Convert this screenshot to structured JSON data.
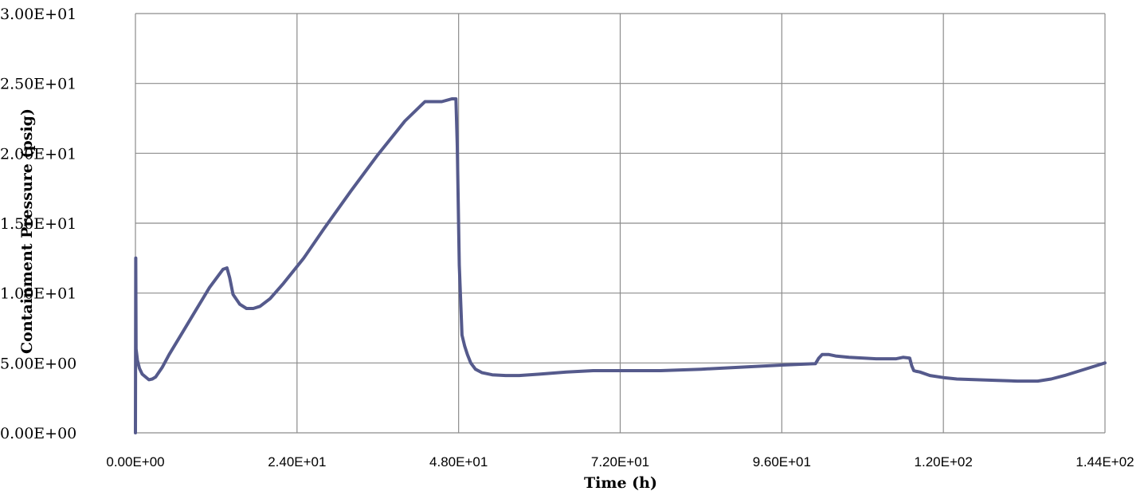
{
  "chart_data": {
    "type": "line",
    "title": "",
    "xlabel": "Time (h)",
    "ylabel": "Containment Pressure (psig)",
    "xlim": [
      0,
      144
    ],
    "ylim": [
      0,
      30
    ],
    "x_ticks": [
      0,
      24,
      48,
      72,
      96,
      120,
      144
    ],
    "x_tick_labels": [
      "0.00E+00",
      "2.40E+01",
      "4.80E+01",
      "7.20E+01",
      "9.60E+01",
      "1.20E+02",
      "1.44E+02"
    ],
    "y_ticks": [
      0,
      5,
      10,
      15,
      20,
      25,
      30
    ],
    "y_tick_labels": [
      "0.00E+00",
      "5.00E+00",
      "1.00E+01",
      "1.50E+01",
      "2.00E+01",
      "2.50E+01",
      "3.00E+01"
    ],
    "grid": true,
    "series_color": "#555A8C",
    "grid_color": "#8C8C8C",
    "series": [
      {
        "x": [
          0,
          0.05,
          0.1,
          0.3,
          0.6,
          1.0,
          1.5,
          2.0,
          2.5,
          3.0,
          4.0,
          5.0,
          7.0,
          9.0,
          11.0,
          13.0,
          13.6,
          14.0,
          14.5,
          15.5,
          16.5,
          17.5,
          18.5,
          20.0,
          22.0,
          25.0,
          28.0,
          32.0,
          36.0,
          40.0,
          43.0,
          44.0,
          45.5,
          47.0,
          47.6,
          47.8,
          48.1,
          48.5,
          48.9,
          49.3,
          49.8,
          50.5,
          51.5,
          53.0,
          55.0,
          57.0,
          60.0,
          64.0,
          68.0,
          72.0,
          78.0,
          84.0,
          90.0,
          96.0,
          101.0,
          101.5,
          102.0,
          103.0,
          104.0,
          106.0,
          110.0,
          113.0,
          114.0,
          115.0,
          115.3,
          115.6,
          116.0,
          116.5,
          118.0,
          120.0,
          122.0,
          125.0,
          128.0,
          131.0,
          134.0,
          136.0,
          138.0,
          140.0,
          142.0,
          144.0
        ],
        "values": [
          0,
          12.5,
          6.0,
          5.2,
          4.6,
          4.2,
          4.0,
          3.8,
          3.85,
          4.0,
          4.7,
          5.6,
          7.2,
          8.8,
          10.4,
          11.7,
          11.8,
          11.1,
          9.9,
          9.2,
          8.9,
          8.9,
          9.05,
          9.6,
          10.7,
          12.5,
          14.6,
          17.3,
          19.9,
          22.3,
          23.7,
          23.7,
          23.7,
          23.9,
          23.9,
          20.5,
          12.0,
          7.0,
          6.2,
          5.6,
          5.0,
          4.55,
          4.3,
          4.15,
          4.1,
          4.1,
          4.2,
          4.35,
          4.45,
          4.45,
          4.45,
          4.55,
          4.7,
          4.85,
          4.95,
          5.35,
          5.6,
          5.6,
          5.5,
          5.4,
          5.3,
          5.3,
          5.4,
          5.35,
          4.8,
          4.45,
          4.4,
          4.35,
          4.1,
          3.95,
          3.85,
          3.8,
          3.75,
          3.7,
          3.7,
          3.85,
          4.1,
          4.4,
          4.7,
          5.0
        ]
      }
    ]
  }
}
